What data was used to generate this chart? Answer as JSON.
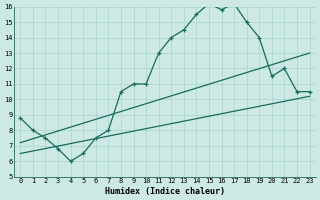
{
  "xlabel": "Humidex (Indice chaleur)",
  "xlim": [
    -0.5,
    23.5
  ],
  "ylim": [
    5,
    16
  ],
  "xticks": [
    0,
    1,
    2,
    3,
    4,
    5,
    6,
    7,
    8,
    9,
    10,
    11,
    12,
    13,
    14,
    15,
    16,
    17,
    18,
    19,
    20,
    21,
    22,
    23
  ],
  "yticks": [
    5,
    6,
    7,
    8,
    9,
    10,
    11,
    12,
    13,
    14,
    15,
    16
  ],
  "bg_color": "#cce9e5",
  "line_color": "#1a6b5a",
  "grid_color": "#aad4cf",
  "main_x": [
    0,
    1,
    2,
    3,
    4,
    5,
    6,
    7,
    8,
    9,
    10,
    11,
    12,
    13,
    14,
    15,
    16,
    17,
    18,
    19,
    20,
    21,
    22,
    23
  ],
  "main_y": [
    8.8,
    8.0,
    7.5,
    6.8,
    6.0,
    6.5,
    7.5,
    8.0,
    10.5,
    11.0,
    11.0,
    13.0,
    14.0,
    14.5,
    15.5,
    16.2,
    15.8,
    16.2,
    15.0,
    14.0,
    11.5,
    12.0,
    10.5,
    10.5
  ],
  "line2_start_x": 0,
  "line2_start_y": 7.2,
  "line2_end_x": 23,
  "line2_end_y": 13.0,
  "line3_start_x": 0,
  "line3_start_y": 6.5,
  "line3_end_x": 23,
  "line3_end_y": 10.2
}
